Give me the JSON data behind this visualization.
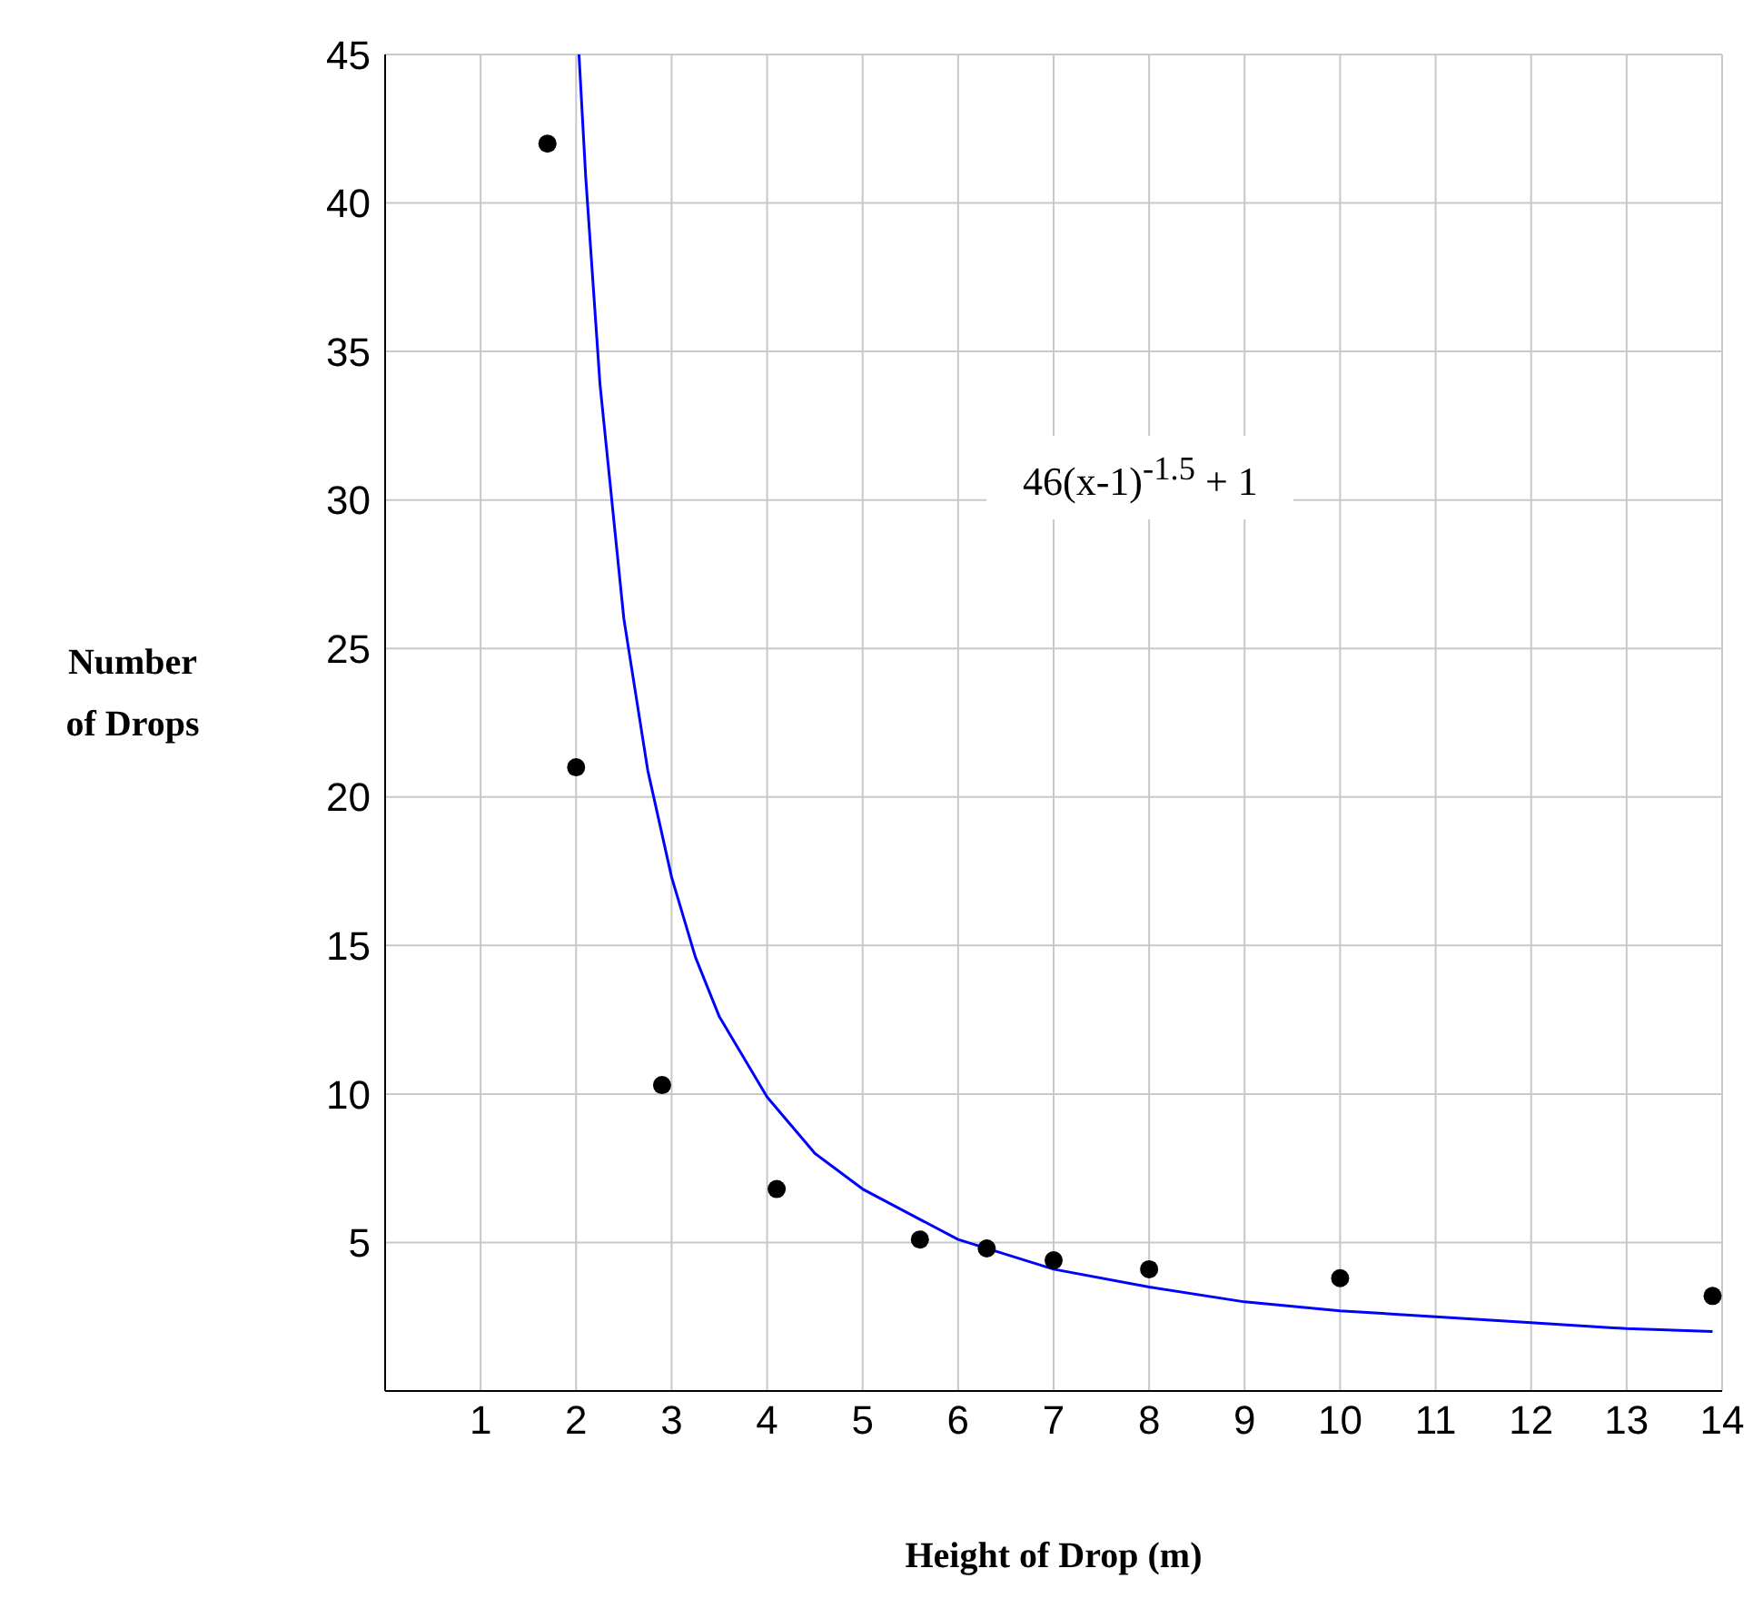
{
  "chart_data": {
    "type": "scatter",
    "xlabel": "Height of Drop (m)",
    "ylabel": "Number of Drops",
    "xlim": [
      0,
      14
    ],
    "xticks": [
      1,
      2,
      3,
      4,
      5,
      6,
      7,
      8,
      9,
      10,
      11,
      12,
      13,
      14
    ],
    "ylim": [
      0,
      45
    ],
    "yticks": [
      5,
      10,
      15,
      20,
      25,
      30,
      35,
      40,
      45
    ],
    "grid": true,
    "marker": "circle",
    "annotations": [
      "46(x-1)$^{-1.5}$ + 1"
    ],
    "series": [
      {
        "color": "#000000",
        "x": [
          1.7,
          2,
          2.9,
          4.1,
          5.6,
          6.3,
          7,
          8,
          10,
          13.9
        ],
        "values": [
          42,
          21,
          10.3,
          6.8,
          5.1,
          4.8,
          4.4,
          4.1,
          3.8,
          3.2
        ]
      },
      {
        "type": "line",
        "color": "#0000ff",
        "marker": "none",
        "x": [
          2.03,
          2.1,
          2.25,
          2.5,
          2.75,
          3,
          3.25,
          3.5,
          4,
          4.5,
          5,
          6,
          7,
          8,
          9,
          10,
          11,
          12,
          13,
          13.9
        ],
        "values": [
          45,
          40.9,
          33.9,
          26,
          20.9,
          17.3,
          14.6,
          12.6,
          9.9,
          8,
          6.8,
          5.1,
          4.1,
          3.5,
          3,
          2.7,
          2.5,
          2.3,
          2.1,
          2
        ]
      }
    ]
  }
}
